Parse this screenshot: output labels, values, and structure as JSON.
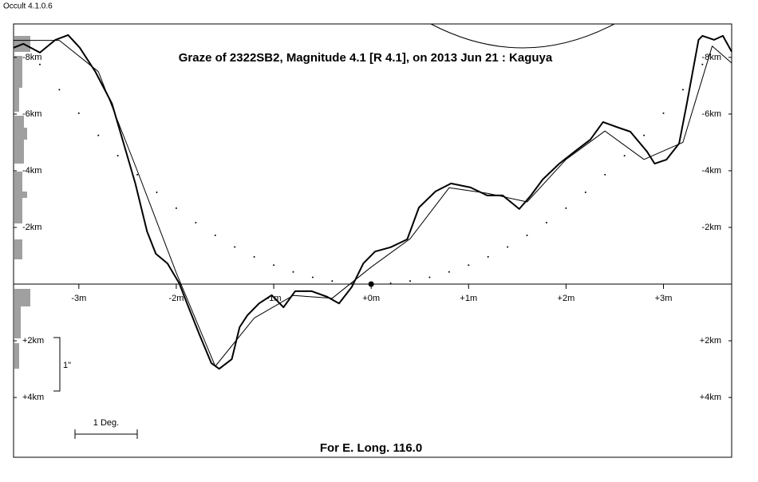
{
  "app_title": "Occult 4.1.0.6",
  "chart_data": {
    "type": "line",
    "title": "Graze of  2322SB2,  Magnitude 4.1 [R 4.1],  on 2013 Jun 21  :  Kaguya",
    "footer": "For E. Long. 116.0",
    "annotations": [
      "1 Deg.",
      "1\""
    ],
    "xlim": [
      -3.67,
      3.7
    ],
    "ylim": [
      6.11,
      -9.18
    ],
    "xticks": [
      {
        "value": -3,
        "label": "-3m"
      },
      {
        "value": -2,
        "label": "-2m"
      },
      {
        "value": -1,
        "label": "-1m"
      },
      {
        "value": 0,
        "label": "+0m"
      },
      {
        "value": 1,
        "label": "+1m"
      },
      {
        "value": 2,
        "label": "+2m"
      },
      {
        "value": 3,
        "label": "+3m"
      }
    ],
    "yticks": [
      {
        "value": -8,
        "label": "-8km"
      },
      {
        "value": -6,
        "label": "-6km"
      },
      {
        "value": -4,
        "label": "-4km"
      },
      {
        "value": -2,
        "label": "-2km"
      },
      {
        "value": 2,
        "label": "+2km"
      },
      {
        "value": 4,
        "label": "+4km"
      }
    ],
    "grid": false,
    "series": [
      {
        "color": "#000000",
        "width": 2,
        "style": "line",
        "x": [
          -3.67,
          -3.57,
          -3.4,
          -3.24,
          -3.11,
          -2.99,
          -2.83,
          -2.66,
          -2.54,
          -2.42,
          -2.3,
          -2.21,
          -2.09,
          -1.97,
          -1.89,
          -1.76,
          -1.64,
          -1.56,
          -1.43,
          -1.35,
          -1.27,
          -1.15,
          -1.02,
          -0.9,
          -0.78,
          -0.61,
          -0.45,
          -0.33,
          -0.2,
          -0.08,
          0.04,
          0.2,
          0.37,
          0.49,
          0.66,
          0.82,
          1.02,
          1.19,
          1.35,
          1.52,
          1.64,
          1.76,
          1.93,
          2.09,
          2.25,
          2.38,
          2.54,
          2.66,
          2.83,
          2.91,
          3.03,
          3.16,
          3.24,
          3.36,
          3.4,
          3.52,
          3.61,
          3.7
        ],
        "values": [
          -8.34,
          -8.48,
          -8.17,
          -8.62,
          -8.79,
          -8.34,
          -7.49,
          -6.37,
          -4.96,
          -3.55,
          -1.86,
          -1.07,
          -0.73,
          -0.03,
          0.68,
          1.8,
          2.79,
          2.99,
          2.65,
          1.52,
          1.1,
          0.68,
          0.39,
          0.82,
          0.25,
          0.25,
          0.45,
          0.68,
          0.11,
          -0.73,
          -1.15,
          -1.3,
          -1.58,
          -2.7,
          -3.27,
          -3.55,
          -3.41,
          -3.13,
          -3.13,
          -2.65,
          -3.13,
          -3.69,
          -4.25,
          -4.68,
          -5.1,
          -5.72,
          -5.52,
          -5.38,
          -4.68,
          -4.25,
          -4.39,
          -4.96,
          -6.37,
          -8.62,
          -8.76,
          -8.62,
          -8.76,
          -8.2
        ]
      },
      {
        "color": "#000000",
        "width": 1,
        "style": "line",
        "x": [
          -3.67,
          -3.2,
          -2.8,
          -2.4,
          -2.0,
          -1.6,
          -1.2,
          -0.8,
          -0.4,
          0,
          0.4,
          0.8,
          1.2,
          1.6,
          2.0,
          2.4,
          2.8,
          3.2,
          3.5,
          3.7
        ],
        "values": [
          -8.6,
          -8.6,
          -7.5,
          -4.0,
          -0.4,
          2.9,
          1.2,
          0.4,
          0.5,
          -0.6,
          -1.6,
          -3.4,
          -3.2,
          -2.9,
          -4.4,
          -5.4,
          -4.4,
          -5.0,
          -8.4,
          -7.8
        ]
      },
      {
        "color": "#000000",
        "width": 1,
        "style": "dots",
        "x": [
          -3.4,
          -3.2,
          -3.0,
          -2.8,
          -2.6,
          -2.4,
          -2.2,
          -2.0,
          -1.8,
          -1.6,
          -1.4,
          -1.2,
          -1.0,
          -0.8,
          -0.6,
          -0.4,
          -0.2,
          0,
          0.2,
          0.4,
          0.6,
          0.8,
          1.0,
          1.2,
          1.4,
          1.6,
          1.8,
          2.0,
          2.2,
          2.4,
          2.6,
          2.8,
          3.0,
          3.2,
          3.4
        ],
        "values": [
          -7.75,
          -6.86,
          -6.03,
          -5.25,
          -4.53,
          -3.86,
          -3.24,
          -2.68,
          -2.17,
          -1.72,
          -1.31,
          -0.96,
          -0.67,
          -0.43,
          -0.24,
          -0.11,
          -0.03,
          0,
          -0.03,
          -0.11,
          -0.24,
          -0.43,
          -0.67,
          -0.96,
          -1.31,
          -1.72,
          -2.17,
          -2.68,
          -3.24,
          -3.86,
          -4.53,
          -5.25,
          -6.03,
          -6.86,
          -7.75
        ]
      }
    ]
  }
}
